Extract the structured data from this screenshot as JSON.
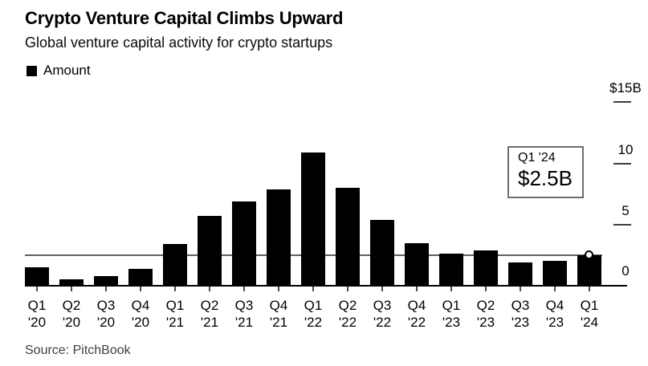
{
  "header": {
    "title": "Crypto Venture Capital Climbs Upward",
    "subtitle": "Global venture capital activity for crypto startups",
    "legend": [
      {
        "label": "Amount",
        "color": "#000000"
      }
    ]
  },
  "chart_data": {
    "type": "bar",
    "title": "Crypto Venture Capital Climbs Upward",
    "subtitle": "Global venture capital activity for crypto startups",
    "unit": "USD billions",
    "categories": [
      "Q1 '20",
      "Q2 '20",
      "Q3 '20",
      "Q4 '20",
      "Q1 '21",
      "Q2 '21",
      "Q3 '21",
      "Q4 '21",
      "Q1 '22",
      "Q2 '22",
      "Q3 '22",
      "Q4 '22",
      "Q1 '23",
      "Q2 '23",
      "Q3 '23",
      "Q4 '23",
      "Q1 '24"
    ],
    "values": [
      1.5,
      0.5,
      0.8,
      1.4,
      3.4,
      5.7,
      6.9,
      7.9,
      10.9,
      8.0,
      5.4,
      3.5,
      2.6,
      2.9,
      1.9,
      2.0,
      2.5
    ],
    "bar_color": "#000000",
    "grid": false,
    "axis_side": "right",
    "ylim": [
      0,
      16
    ],
    "yticks": [
      {
        "value": 15,
        "label": "$15B"
      },
      {
        "value": 10,
        "label": "10"
      },
      {
        "value": 5,
        "label": "5"
      },
      {
        "value": 0,
        "label": "0"
      }
    ],
    "reference_line": {
      "value": 2.5,
      "color": "#5f5f5f"
    },
    "last_point_marker": {
      "category": "Q1 '24",
      "value": 2.5,
      "style": "open-circle"
    },
    "annotation": {
      "line1": "Q1 '24",
      "line2": "$2.5B"
    },
    "legend": [
      {
        "label": "Amount",
        "color": "#000000"
      }
    ]
  },
  "footer": {
    "source": "Source: PitchBook"
  }
}
